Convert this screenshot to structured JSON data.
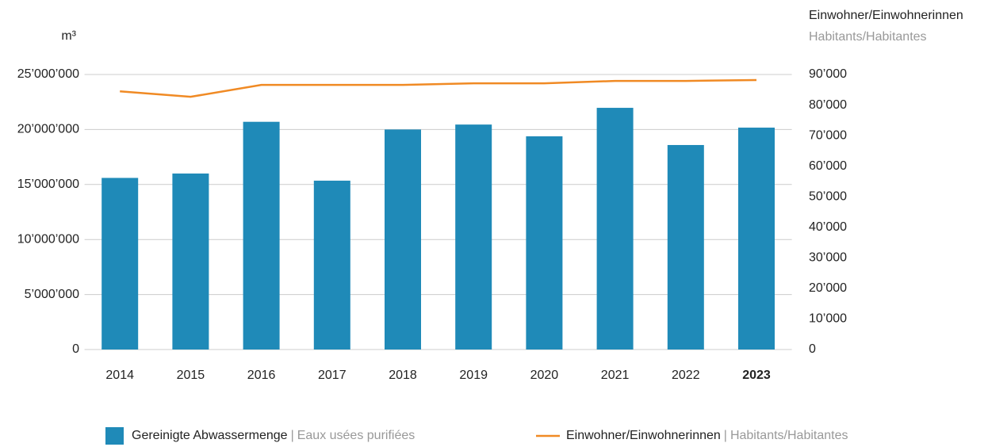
{
  "chart_data": {
    "type": "bar-line",
    "y_axis_label": "m³",
    "y2_axis_label": "Einwohner/Einwohnerinnen",
    "y2_axis_label_fr": "Habitants/Habitantes",
    "categories": [
      "2014",
      "2015",
      "2016",
      "2017",
      "2018",
      "2019",
      "2020",
      "2021",
      "2022",
      "2023"
    ],
    "bold_last_category": true,
    "series": [
      {
        "name": "Gereinigte Abwassermenge",
        "name_fr": "Eaux usées purifiées",
        "color": "#1f8ab8",
        "type": "bar",
        "values": [
          15600000,
          16000000,
          20700000,
          15350000,
          20000000,
          20450000,
          19380000,
          21970000,
          18590000,
          20170000
        ]
      },
      {
        "name": "Einwohner/Einwohnerinnen",
        "name_fr": "Habitants/Habitantes",
        "color": "#f08a24",
        "type": "line",
        "axis": "y2",
        "values": [
          84500,
          82700,
          86600,
          86600,
          86600,
          87100,
          87100,
          87900,
          87900,
          88200
        ]
      }
    ],
    "legend_separator": "|",
    "ylim": [
      0,
      25000000
    ],
    "yticks": [
      0,
      {
        "value": 5000000,
        "label": "5’000’000"
      },
      {
        "value": 10000000,
        "label": "10’000’000"
      },
      {
        "value": 15000000,
        "label": "15’000’000"
      },
      {
        "value": 20000000,
        "label": "20’000’000"
      },
      {
        "value": 25000000,
        "label": "25’000’000"
      }
    ],
    "y2lim": [
      0,
      90000
    ],
    "y2ticks": [
      0,
      {
        "value": 10000,
        "label": "10’000"
      },
      {
        "value": 20000,
        "label": "20’000"
      },
      {
        "value": 30000,
        "label": "30’000"
      },
      {
        "value": 40000,
        "label": "40’000"
      },
      {
        "value": 50000,
        "label": "50’000"
      },
      {
        "value": 60000,
        "label": "60’000"
      },
      {
        "value": 70000,
        "label": "70’000"
      },
      {
        "value": 80000,
        "label": "80’000"
      },
      {
        "value": 90000,
        "label": "90’000"
      }
    ],
    "grid": true
  }
}
